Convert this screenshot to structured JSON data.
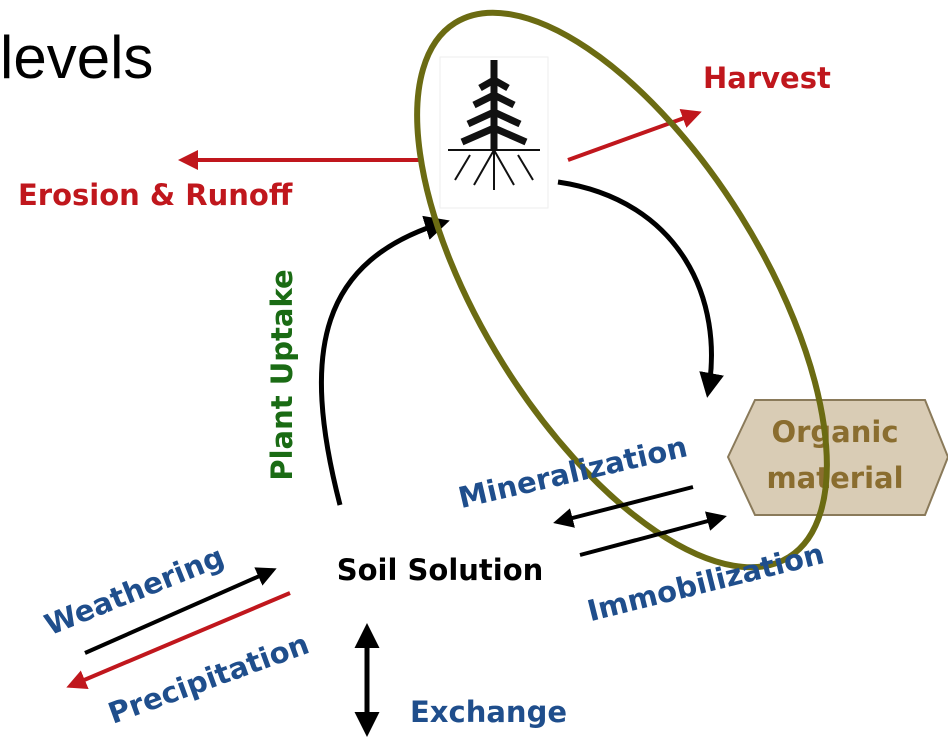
{
  "title": "levels",
  "labels": {
    "harvest": "Harvest",
    "erosion": "Erosion & Runoff",
    "uptake": "Plant  Uptake",
    "mineralization": "Mineralization",
    "immobilization": "Immobilization",
    "organic": [
      "Organic",
      "material"
    ],
    "soil": "Soil Solution",
    "weathering": "Weathering",
    "precipitation": "Precipitation",
    "exchange": "Exchange"
  }
}
